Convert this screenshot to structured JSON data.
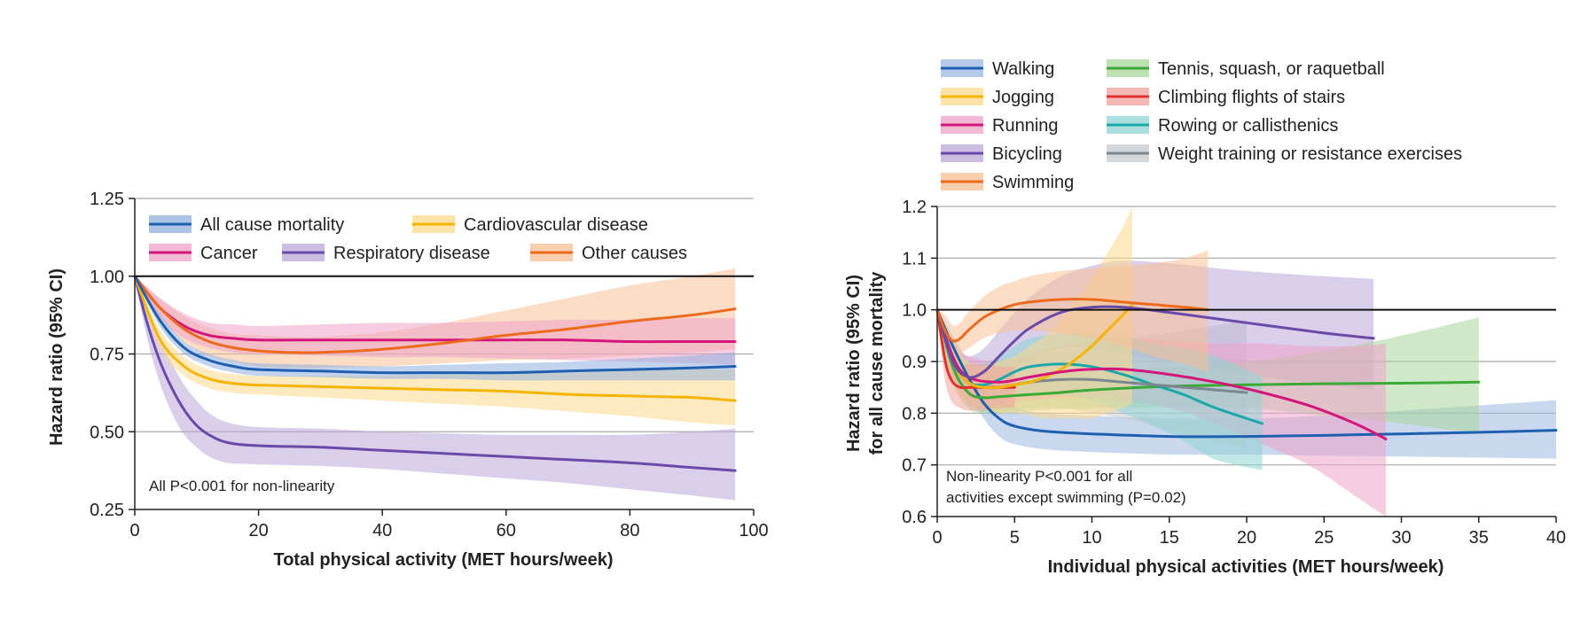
{
  "chart_data": [
    {
      "type": "line",
      "title": "",
      "xlabel": "Total physical activity (MET hours/week)",
      "ylabel": "Hazard ratio (95% CI)",
      "xlim": [
        0,
        100
      ],
      "ylim": [
        0.25,
        1.25
      ],
      "xticks": [
        0,
        20,
        40,
        60,
        80,
        100
      ],
      "yticks": [
        0.25,
        0.5,
        0.75,
        1.0,
        1.25
      ],
      "ytick_labels": [
        "0.25",
        "0.50",
        "0.75",
        "1.00",
        "1.25"
      ],
      "grid": true,
      "reference_line": 1.0,
      "legend_position": "top",
      "annotation": "All P<0.001 for non-linearity",
      "series": [
        {
          "name": "All cause  mortality",
          "color": "#1f5fb0",
          "band": "#8fb0de",
          "x": [
            0,
            4,
            8,
            12,
            16,
            20,
            30,
            40,
            50,
            60,
            70,
            80,
            90,
            97
          ],
          "y": [
            1.0,
            0.86,
            0.77,
            0.73,
            0.71,
            0.7,
            0.695,
            0.69,
            0.69,
            0.69,
            0.695,
            0.7,
            0.705,
            0.71
          ],
          "lower": [
            1.0,
            0.84,
            0.75,
            0.71,
            0.69,
            0.68,
            0.675,
            0.67,
            0.67,
            0.665,
            0.665,
            0.665,
            0.665,
            0.665
          ],
          "upper": [
            1.0,
            0.88,
            0.79,
            0.75,
            0.73,
            0.72,
            0.715,
            0.71,
            0.715,
            0.72,
            0.725,
            0.735,
            0.745,
            0.755
          ]
        },
        {
          "name": "Cardiovascular disease",
          "color": "#f5b400",
          "band": "#fbd98a",
          "x": [
            0,
            4,
            8,
            12,
            16,
            20,
            30,
            40,
            50,
            60,
            70,
            80,
            90,
            97
          ],
          "y": [
            1.0,
            0.8,
            0.71,
            0.67,
            0.655,
            0.65,
            0.645,
            0.64,
            0.635,
            0.63,
            0.62,
            0.615,
            0.61,
            0.6
          ],
          "lower": [
            1.0,
            0.77,
            0.68,
            0.64,
            0.625,
            0.62,
            0.61,
            0.6,
            0.59,
            0.58,
            0.565,
            0.55,
            0.53,
            0.52
          ],
          "upper": [
            1.0,
            0.83,
            0.74,
            0.7,
            0.685,
            0.68,
            0.68,
            0.68,
            0.685,
            0.69,
            0.69,
            0.695,
            0.7,
            0.7
          ]
        },
        {
          "name": "Cancer",
          "color": "#d4167a",
          "band": "#eea2c8",
          "x": [
            0,
            4,
            8,
            12,
            16,
            20,
            30,
            40,
            50,
            60,
            70,
            80,
            90,
            97
          ],
          "y": [
            1.0,
            0.9,
            0.84,
            0.81,
            0.8,
            0.795,
            0.795,
            0.795,
            0.795,
            0.795,
            0.795,
            0.79,
            0.79,
            0.79
          ],
          "lower": [
            1.0,
            0.87,
            0.8,
            0.77,
            0.755,
            0.75,
            0.745,
            0.74,
            0.74,
            0.735,
            0.73,
            0.725,
            0.72,
            0.715
          ],
          "upper": [
            1.0,
            0.93,
            0.88,
            0.85,
            0.845,
            0.84,
            0.845,
            0.85,
            0.85,
            0.855,
            0.86,
            0.86,
            0.865,
            0.865
          ]
        },
        {
          "name": "Respiratory disease",
          "color": "#6a4aa8",
          "band": "#b9a8d8",
          "x": [
            0,
            2,
            4,
            6,
            8,
            10,
            12,
            15,
            20,
            30,
            40,
            50,
            60,
            70,
            80,
            90,
            97
          ],
          "y": [
            1.0,
            0.85,
            0.73,
            0.64,
            0.57,
            0.52,
            0.49,
            0.465,
            0.455,
            0.45,
            0.44,
            0.43,
            0.42,
            0.41,
            0.4,
            0.385,
            0.375
          ],
          "lower": [
            1.0,
            0.8,
            0.66,
            0.56,
            0.49,
            0.45,
            0.42,
            0.4,
            0.395,
            0.39,
            0.38,
            0.365,
            0.35,
            0.335,
            0.315,
            0.295,
            0.28
          ],
          "upper": [
            1.0,
            0.9,
            0.8,
            0.72,
            0.65,
            0.6,
            0.56,
            0.53,
            0.515,
            0.51,
            0.5,
            0.495,
            0.49,
            0.49,
            0.49,
            0.5,
            0.51
          ]
        },
        {
          "name": "Other causes",
          "color": "#ec6a1d",
          "band": "#f7bf94",
          "x": [
            0,
            4,
            8,
            12,
            16,
            20,
            25,
            30,
            40,
            50,
            60,
            70,
            80,
            90,
            97
          ],
          "y": [
            1.0,
            0.9,
            0.83,
            0.79,
            0.77,
            0.76,
            0.755,
            0.755,
            0.765,
            0.785,
            0.81,
            0.83,
            0.855,
            0.875,
            0.895
          ],
          "lower": [
            1.0,
            0.87,
            0.79,
            0.745,
            0.725,
            0.71,
            0.705,
            0.705,
            0.71,
            0.72,
            0.73,
            0.735,
            0.745,
            0.755,
            0.765
          ],
          "upper": [
            1.0,
            0.93,
            0.87,
            0.835,
            0.815,
            0.81,
            0.805,
            0.805,
            0.82,
            0.85,
            0.89,
            0.93,
            0.97,
            1.0,
            1.025
          ]
        }
      ]
    },
    {
      "type": "line",
      "title": "",
      "xlabel": "Individual physical activities (MET hours/week)",
      "ylabel": "Hazard ratio (95% CI)",
      "ylabel_line2": "for all cause mortality",
      "xlim": [
        0,
        40
      ],
      "ylim": [
        0.6,
        1.2
      ],
      "xticks": [
        0,
        5,
        10,
        15,
        20,
        25,
        30,
        35,
        40
      ],
      "yticks": [
        0.6,
        0.7,
        0.8,
        0.9,
        1.0,
        1.1,
        1.2
      ],
      "ytick_labels": [
        "0.6",
        "0.7",
        "0.8",
        "0.9",
        "1.0",
        "1.1",
        "1.2"
      ],
      "grid": true,
      "reference_line": 1.0,
      "legend_position": "top",
      "annotation_lines": [
        "Non-linearity P<0.001 for all",
        "activities except swimming (P=0.02)"
      ],
      "series": [
        {
          "name": "Walking",
          "color": "#1f5fb0",
          "band": "#9db8e2",
          "x": [
            0,
            1,
            2,
            3,
            4,
            5,
            7,
            10,
            15,
            20,
            25,
            30,
            35,
            40
          ],
          "y": [
            1.0,
            0.93,
            0.87,
            0.82,
            0.79,
            0.775,
            0.765,
            0.76,
            0.755,
            0.755,
            0.757,
            0.76,
            0.763,
            0.767
          ],
          "lower": [
            1.0,
            0.91,
            0.84,
            0.79,
            0.755,
            0.74,
            0.73,
            0.725,
            0.72,
            0.72,
            0.718,
            0.716,
            0.714,
            0.712
          ],
          "upper": [
            1.0,
            0.95,
            0.9,
            0.85,
            0.825,
            0.81,
            0.8,
            0.795,
            0.79,
            0.79,
            0.795,
            0.805,
            0.815,
            0.825
          ]
        },
        {
          "name": "Jogging",
          "color": "#f5b400",
          "band": "#fbd98a",
          "x": [
            0,
            1,
            2,
            3,
            4,
            5,
            6,
            7,
            8,
            9,
            10,
            11,
            12,
            12.6
          ],
          "y": [
            1.0,
            0.9,
            0.86,
            0.85,
            0.85,
            0.855,
            0.86,
            0.87,
            0.885,
            0.905,
            0.93,
            0.96,
            0.99,
            1.01
          ],
          "lower": [
            1.0,
            0.86,
            0.82,
            0.81,
            0.8,
            0.8,
            0.795,
            0.79,
            0.79,
            0.79,
            0.79,
            0.8,
            0.81,
            0.82
          ],
          "upper": [
            1.0,
            0.94,
            0.9,
            0.89,
            0.9,
            0.91,
            0.93,
            0.95,
            0.98,
            1.02,
            1.06,
            1.11,
            1.16,
            1.2
          ]
        },
        {
          "name": "Running",
          "color": "#d4167a",
          "band": "#eea2c8",
          "x": [
            0,
            1,
            2,
            4,
            6,
            8,
            10,
            12,
            15,
            18,
            21,
            24,
            27,
            29
          ],
          "y": [
            1.0,
            0.91,
            0.87,
            0.86,
            0.87,
            0.88,
            0.885,
            0.885,
            0.875,
            0.86,
            0.84,
            0.815,
            0.78,
            0.75
          ],
          "lower": [
            1.0,
            0.88,
            0.83,
            0.82,
            0.825,
            0.83,
            0.83,
            0.825,
            0.81,
            0.78,
            0.74,
            0.7,
            0.64,
            0.6
          ],
          "upper": [
            1.0,
            0.94,
            0.91,
            0.9,
            0.915,
            0.93,
            0.94,
            0.945,
            0.94,
            0.935,
            0.935,
            0.93,
            0.93,
            0.935
          ]
        },
        {
          "name": "Bicycling",
          "color": "#6a4aa8",
          "band": "#b9a8d8",
          "x": [
            0,
            1,
            2,
            3,
            4,
            5,
            6,
            8,
            10,
            12,
            15,
            20,
            25,
            28.2
          ],
          "y": [
            1.0,
            0.9,
            0.87,
            0.88,
            0.91,
            0.94,
            0.965,
            0.995,
            1.005,
            1.005,
            0.995,
            0.975,
            0.955,
            0.945
          ],
          "lower": [
            1.0,
            0.87,
            0.83,
            0.835,
            0.86,
            0.885,
            0.905,
            0.925,
            0.925,
            0.915,
            0.9,
            0.875,
            0.855,
            0.845
          ],
          "upper": [
            1.0,
            0.93,
            0.91,
            0.925,
            0.96,
            0.995,
            1.025,
            1.065,
            1.085,
            1.095,
            1.09,
            1.075,
            1.065,
            1.06
          ]
        },
        {
          "name": "Swimming",
          "color": "#ec6a1d",
          "band": "#f7bf94",
          "x": [
            0,
            0.5,
            1,
            1.5,
            2,
            3,
            4,
            5,
            6,
            8,
            10,
            12,
            14,
            16,
            17.5
          ],
          "y": [
            1.0,
            0.96,
            0.94,
            0.945,
            0.96,
            0.985,
            1.0,
            1.01,
            1.015,
            1.02,
            1.02,
            1.015,
            1.01,
            1.005,
            1.0
          ],
          "lower": [
            1.0,
            0.93,
            0.91,
            0.915,
            0.925,
            0.945,
            0.955,
            0.96,
            0.96,
            0.955,
            0.945,
            0.93,
            0.91,
            0.895,
            0.88
          ],
          "upper": [
            1.0,
            0.99,
            0.97,
            0.975,
            0.995,
            1.025,
            1.045,
            1.055,
            1.065,
            1.075,
            1.08,
            1.085,
            1.09,
            1.1,
            1.115
          ]
        },
        {
          "name": "Tennis, squash, or raquetball",
          "color": "#3aa935",
          "band": "#a8d79b",
          "x": [
            0,
            1,
            2,
            3,
            4,
            6,
            8,
            10,
            15,
            20,
            25,
            30,
            35
          ],
          "y": [
            1.0,
            0.89,
            0.84,
            0.83,
            0.832,
            0.836,
            0.84,
            0.845,
            0.852,
            0.855,
            0.857,
            0.858,
            0.86
          ],
          "lower": [
            1.0,
            0.86,
            0.81,
            0.8,
            0.8,
            0.805,
            0.808,
            0.81,
            0.812,
            0.81,
            0.795,
            0.78,
            0.76
          ],
          "upper": [
            1.0,
            0.92,
            0.87,
            0.86,
            0.865,
            0.87,
            0.875,
            0.88,
            0.89,
            0.9,
            0.92,
            0.95,
            0.985
          ]
        },
        {
          "name": "Climbing flights of stairs",
          "color": "#e0322d",
          "band": "#f2a29c",
          "x": [
            0,
            0.3,
            0.6,
            1,
            1.5,
            2,
            3,
            4,
            5
          ],
          "y": [
            1.0,
            0.94,
            0.89,
            0.86,
            0.85,
            0.85,
            0.85,
            0.85,
            0.85
          ],
          "lower": [
            1.0,
            0.91,
            0.85,
            0.82,
            0.81,
            0.805,
            0.805,
            0.81,
            0.81
          ],
          "upper": [
            1.0,
            0.97,
            0.93,
            0.9,
            0.89,
            0.895,
            0.895,
            0.89,
            0.89
          ]
        },
        {
          "name": "Rowing or callisthenics",
          "color": "#1aa8a8",
          "band": "#8fd3d3",
          "x": [
            0,
            1,
            2,
            3,
            4,
            5,
            6,
            8,
            10,
            12,
            14,
            16,
            18,
            21
          ],
          "y": [
            1.0,
            0.9,
            0.86,
            0.855,
            0.865,
            0.88,
            0.89,
            0.895,
            0.89,
            0.875,
            0.855,
            0.835,
            0.81,
            0.78
          ],
          "lower": [
            1.0,
            0.87,
            0.82,
            0.815,
            0.82,
            0.83,
            0.835,
            0.835,
            0.825,
            0.8,
            0.775,
            0.745,
            0.71,
            0.69
          ],
          "upper": [
            1.0,
            0.93,
            0.9,
            0.895,
            0.91,
            0.93,
            0.945,
            0.955,
            0.955,
            0.95,
            0.935,
            0.925,
            0.91,
            0.87
          ]
        },
        {
          "name": "Weight training or resistance exercises",
          "color": "#7c8790",
          "band": "#c6cbd0",
          "x": [
            0,
            1,
            2,
            3,
            4,
            6,
            8,
            10,
            12,
            14,
            16,
            18,
            20
          ],
          "y": [
            1.0,
            0.9,
            0.86,
            0.85,
            0.85,
            0.86,
            0.865,
            0.865,
            0.86,
            0.855,
            0.85,
            0.845,
            0.84
          ],
          "lower": [
            1.0,
            0.87,
            0.82,
            0.81,
            0.805,
            0.81,
            0.81,
            0.8,
            0.79,
            0.775,
            0.76,
            0.745,
            0.73
          ],
          "upper": [
            1.0,
            0.93,
            0.9,
            0.89,
            0.895,
            0.91,
            0.92,
            0.93,
            0.94,
            0.95,
            0.96,
            0.97,
            0.98
          ]
        }
      ]
    }
  ]
}
